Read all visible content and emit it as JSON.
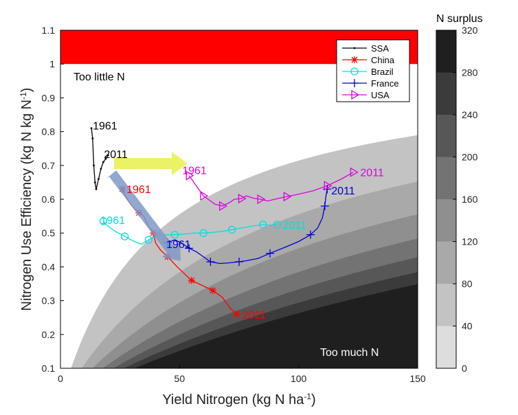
{
  "chart_data": {
    "type": "line",
    "xlabel": "Yield Nitrogen (kg N ha",
    "xlabel_sup": "-1",
    "xlabel_end": ")",
    "ylabel": "Nitrogen Use Efficiency (kg N kg N",
    "ylabel_sup": "-1",
    "ylabel_end": ")",
    "xlim": [
      0,
      150
    ],
    "ylim": [
      0.1,
      1.1
    ],
    "xticks": [
      "0",
      "50",
      "100",
      "150"
    ],
    "yticks": [
      "0.1",
      "0.2",
      "0.3",
      "0.4",
      "0.5",
      "0.6",
      "0.7",
      "0.8",
      "0.9",
      "1",
      "1.1"
    ],
    "colorbar": {
      "title": "N surplus",
      "ticks": [
        "0",
        "40",
        "80",
        "120",
        "160",
        "200",
        "240",
        "280",
        "320"
      ],
      "values": [
        0,
        40,
        80,
        120,
        160,
        200,
        240,
        280,
        320
      ],
      "colors": [
        "#ffffff",
        "#dddddd",
        "#c3c3c3",
        "#a9a9a9",
        "#8f8f8f",
        "#737373",
        "#575757",
        "#3b3b3b",
        "#1f1f1f"
      ]
    },
    "annotations": {
      "too_little": "Too little N",
      "too_much": "Too much N"
    },
    "legend_position": "top-right",
    "series": [
      {
        "name": "SSA",
        "color": "#000000",
        "marker": "dot",
        "start_label": "1961",
        "end_label": "2011",
        "points": [
          [
            13,
            0.81
          ],
          [
            13.5,
            0.78
          ],
          [
            14,
            0.7
          ],
          [
            14.5,
            0.65
          ],
          [
            15,
            0.63
          ],
          [
            16,
            0.66
          ],
          [
            17,
            0.69
          ],
          [
            18,
            0.71
          ],
          [
            19,
            0.72
          ],
          [
            20,
            0.73
          ]
        ]
      },
      {
        "name": "China",
        "color": "#ff0000",
        "marker": "asterisk",
        "start_label": "1961",
        "end_label": "2011",
        "points": [
          [
            26,
            0.63
          ],
          [
            28,
            0.6
          ],
          [
            30,
            0.58
          ],
          [
            33,
            0.56
          ],
          [
            35,
            0.55
          ],
          [
            37,
            0.52
          ],
          [
            39,
            0.5
          ],
          [
            40,
            0.47
          ],
          [
            42,
            0.45
          ],
          [
            45,
            0.43
          ],
          [
            49,
            0.4
          ],
          [
            52,
            0.38
          ],
          [
            55,
            0.36
          ],
          [
            58,
            0.35
          ],
          [
            61,
            0.34
          ],
          [
            64,
            0.33
          ],
          [
            68,
            0.31
          ],
          [
            71,
            0.28
          ],
          [
            74,
            0.26
          ]
        ]
      },
      {
        "name": "Brazil",
        "color": "#00e0e0",
        "marker": "circle",
        "start_label": "1961",
        "end_label": "2011",
        "points": [
          [
            18,
            0.535
          ],
          [
            20,
            0.52
          ],
          [
            23,
            0.505
          ],
          [
            27,
            0.49
          ],
          [
            31,
            0.475
          ],
          [
            34,
            0.467
          ],
          [
            37,
            0.48
          ],
          [
            40,
            0.49
          ],
          [
            44,
            0.495
          ],
          [
            48,
            0.495
          ],
          [
            52,
            0.497
          ],
          [
            56,
            0.5
          ],
          [
            60,
            0.5
          ],
          [
            64,
            0.502
          ],
          [
            68,
            0.505
          ],
          [
            72,
            0.51
          ],
          [
            76,
            0.515
          ],
          [
            80,
            0.52
          ],
          [
            85,
            0.525
          ],
          [
            88,
            0.523
          ],
          [
            91,
            0.525
          ]
        ]
      },
      {
        "name": "France",
        "color": "#0000cc",
        "marker": "plus",
        "start_label": "1961",
        "end_label": "2011",
        "points": [
          [
            45,
            0.472
          ],
          [
            48,
            0.48
          ],
          [
            51,
            0.47
          ],
          [
            54,
            0.455
          ],
          [
            57,
            0.445
          ],
          [
            60,
            0.43
          ],
          [
            63,
            0.415
          ],
          [
            67,
            0.41
          ],
          [
            71,
            0.412
          ],
          [
            75,
            0.415
          ],
          [
            78,
            0.418
          ],
          [
            83,
            0.425
          ],
          [
            88,
            0.44
          ],
          [
            95,
            0.46
          ],
          [
            100,
            0.475
          ],
          [
            105,
            0.495
          ],
          [
            108,
            0.515
          ],
          [
            110,
            0.545
          ],
          [
            111,
            0.58
          ],
          [
            111.5,
            0.61
          ],
          [
            112,
            0.63
          ]
        ]
      },
      {
        "name": "USA",
        "color": "#dd00dd",
        "marker": "triangle",
        "start_label": "1961",
        "end_label": "2011",
        "points": [
          [
            54,
            0.67
          ],
          [
            56,
            0.65
          ],
          [
            58,
            0.63
          ],
          [
            60,
            0.61
          ],
          [
            63,
            0.595
          ],
          [
            65,
            0.585
          ],
          [
            68,
            0.58
          ],
          [
            71,
            0.59
          ],
          [
            73,
            0.6
          ],
          [
            76,
            0.602
          ],
          [
            78,
            0.61
          ],
          [
            81,
            0.603
          ],
          [
            84,
            0.6
          ],
          [
            87,
            0.595
          ],
          [
            90,
            0.6
          ],
          [
            95,
            0.608
          ],
          [
            100,
            0.615
          ],
          [
            106,
            0.625
          ],
          [
            112,
            0.64
          ],
          [
            118,
            0.66
          ],
          [
            123,
            0.68
          ]
        ]
      }
    ]
  }
}
